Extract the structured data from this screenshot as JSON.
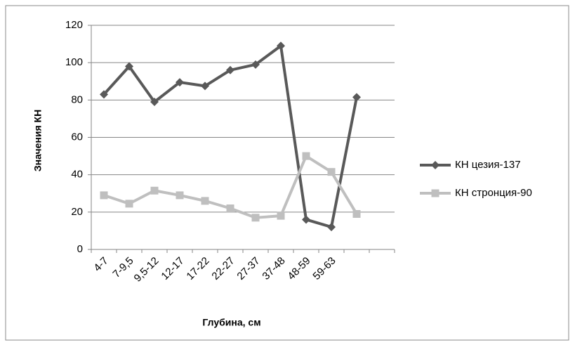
{
  "chart_data": {
    "type": "line",
    "y_label": "Значения  КН",
    "x_label": "Глубина, см",
    "categories": [
      "4-7",
      "7-9,5",
      "9,5-12",
      "12-17",
      "17-22",
      "22-27",
      "27-37",
      "37-48",
      "48-59",
      "59-63",
      null,
      null
    ],
    "series": [
      {
        "name": "КН цезия-137",
        "color": "#595959",
        "marker": "diamond",
        "values": [
          83,
          98,
          79,
          89.5,
          87.5,
          96,
          99,
          109,
          16,
          12,
          81.5,
          null
        ]
      },
      {
        "name": "КН стронция-90",
        "color": "#bfbfbf",
        "marker": "square",
        "values": [
          29,
          24.5,
          31.5,
          29,
          26,
          22,
          17,
          18,
          50,
          41.5,
          19,
          null
        ]
      }
    ],
    "ylim": [
      0,
      120
    ],
    "yticks": [
      0,
      20,
      40,
      60,
      80,
      100,
      120
    ],
    "grid": true,
    "legend": "right"
  }
}
